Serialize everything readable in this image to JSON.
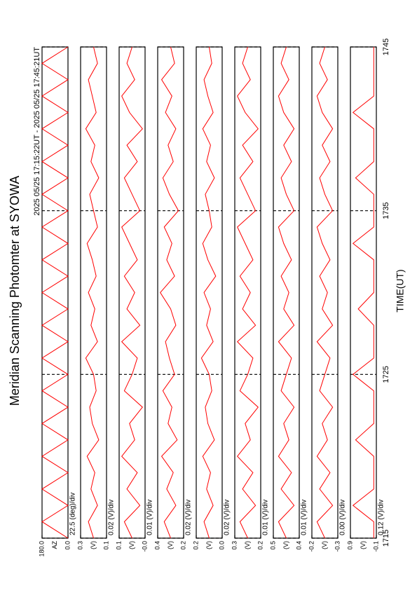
{
  "header": {
    "title": "Meridian Scanning Photomter at SYOWA",
    "subtitle": "2025 05/25 17:15:22UT - 2025 05/25 17:45:21UT"
  },
  "time_axis": {
    "label": "TIME(UT)",
    "xlim": [
      1715,
      1745
    ],
    "xticks": [
      1715,
      1725,
      1735,
      1745
    ],
    "x": [
      1715,
      1716,
      1717,
      1718,
      1719,
      1720,
      1721,
      1722,
      1723,
      1724,
      1725,
      1726,
      1727,
      1728,
      1729,
      1730,
      1731,
      1732,
      1733,
      1734,
      1735,
      1736,
      1737,
      1738,
      1739,
      1740,
      1741,
      1742,
      1743,
      1744,
      1745
    ]
  },
  "chart_data": [
    {
      "type": "line",
      "label": "AZ",
      "scale": "22.5 (deg)/div",
      "color": "#ff0000",
      "ylim": [
        0,
        180
      ],
      "yticks": [
        {
          "value": 0,
          "label": "0.0"
        },
        {
          "value": 180,
          "label": "180.0"
        }
      ],
      "values": [
        0,
        180,
        0,
        180,
        0,
        180,
        0,
        180,
        0,
        180,
        0,
        180,
        0,
        180,
        0,
        180,
        0,
        180,
        0,
        180,
        0,
        180,
        0,
        180,
        0,
        180,
        0,
        180,
        0,
        180,
        0
      ]
    },
    {
      "type": "line",
      "label": "(V)",
      "scale": "0.02 (V)/div",
      "color": "#ff0000",
      "ylim": [
        0.1,
        0.3
      ],
      "yticks": [
        0.1,
        0.3
      ],
      "values": [
        0.2,
        0.24,
        0.17,
        0.22,
        0.19,
        0.25,
        0.16,
        0.21,
        0.23,
        0.18,
        0.2,
        0.26,
        0.17,
        0.22,
        0.19,
        0.24,
        0.18,
        0.21,
        0.25,
        0.17,
        0.2,
        0.23,
        0.16,
        0.22,
        0.19,
        0.26,
        0.18,
        0.21,
        0.24,
        0.17,
        0.2
      ]
    },
    {
      "type": "line",
      "label": "(V)",
      "scale": "0.01 (V)/div",
      "color": "#ff0000",
      "ylim": [
        0,
        0.1
      ],
      "yticks": [
        {
          "value": 0,
          "label": "-0.0"
        },
        0.1
      ],
      "values": [
        0.05,
        0.08,
        0.02,
        0.07,
        0.03,
        0.09,
        0.04,
        0.06,
        0.01,
        0.08,
        0.05,
        0.03,
        0.09,
        0.02,
        0.07,
        0.04,
        0.08,
        0.03,
        0.06,
        0.09,
        0.02,
        0.05,
        0.08,
        0.03,
        0.07,
        0.01,
        0.06,
        0.09,
        0.04,
        0.07,
        0.05
      ]
    },
    {
      "type": "line",
      "label": "(V)",
      "scale": "0.02 (V)/div",
      "color": "#ff0000",
      "ylim": [
        0.2,
        0.4
      ],
      "yticks": [
        0.2,
        0.4
      ],
      "values": [
        0.3,
        0.35,
        0.26,
        0.33,
        0.28,
        0.37,
        0.25,
        0.32,
        0.29,
        0.36,
        0.27,
        0.31,
        0.34,
        0.26,
        0.3,
        0.38,
        0.27,
        0.33,
        0.29,
        0.35,
        0.24,
        0.31,
        0.36,
        0.28,
        0.32,
        0.26,
        0.34,
        0.29,
        0.37,
        0.27,
        0.3
      ]
    },
    {
      "type": "line",
      "label": "(V)",
      "scale": "0.02 (V)/div",
      "color": "#ff0000",
      "ylim": [
        0,
        0.2
      ],
      "yticks": [
        {
          "value": 0,
          "label": "0.0"
        },
        0.2
      ],
      "values": [
        0.1,
        0.14,
        0.07,
        0.12,
        0.09,
        0.15,
        0.06,
        0.11,
        0.13,
        0.08,
        0.1,
        0.16,
        0.07,
        0.12,
        0.09,
        0.14,
        0.05,
        0.11,
        0.15,
        0.08,
        0.1,
        0.13,
        0.06,
        0.12,
        0.09,
        0.15,
        0.07,
        0.11,
        0.14,
        0.08,
        0.1
      ]
    },
    {
      "type": "line",
      "label": "(V)",
      "scale": "0.01 (V)/div",
      "color": "#ff0000",
      "ylim": [
        0.2,
        0.3
      ],
      "yticks": [
        0.2,
        0.3
      ],
      "values": [
        0.25,
        0.28,
        0.22,
        0.27,
        0.23,
        0.29,
        0.24,
        0.26,
        0.21,
        0.28,
        0.25,
        0.23,
        0.29,
        0.22,
        0.27,
        0.24,
        0.28,
        0.23,
        0.26,
        0.29,
        0.22,
        0.25,
        0.28,
        0.23,
        0.27,
        0.21,
        0.26,
        0.29,
        0.24,
        0.27,
        0.25
      ]
    },
    {
      "type": "line",
      "label": "(V)",
      "scale": "0.01 (V)/div",
      "color": "#ff0000",
      "ylim": [
        0.4,
        0.5
      ],
      "yticks": [
        0.4,
        0.5
      ],
      "values": [
        0.45,
        0.48,
        0.42,
        0.47,
        0.43,
        0.48,
        0.44,
        0.46,
        0.42,
        0.47,
        0.45,
        0.43,
        0.48,
        0.42,
        0.46,
        0.44,
        0.47,
        0.43,
        0.46,
        0.48,
        0.42,
        0.45,
        0.47,
        0.43,
        0.46,
        0.42,
        0.46,
        0.48,
        0.44,
        0.47,
        0.45
      ]
    },
    {
      "type": "line",
      "label": "(V)",
      "scale": "0.00 (V)/div",
      "color": "#ff0000",
      "ylim": [
        -0.3,
        -0.2
      ],
      "yticks": [
        -0.3,
        -0.2
      ],
      "values": [
        -0.25,
        -0.22,
        -0.28,
        -0.23,
        -0.27,
        -0.22,
        -0.26,
        -0.24,
        -0.28,
        -0.23,
        -0.25,
        -0.27,
        -0.22,
        -0.28,
        -0.24,
        -0.26,
        -0.23,
        -0.27,
        -0.24,
        -0.22,
        -0.28,
        -0.25,
        -0.23,
        -0.27,
        -0.24,
        -0.28,
        -0.24,
        -0.22,
        -0.26,
        -0.23,
        -0.25
      ]
    },
    {
      "type": "line",
      "label": "(V)",
      "scale": "0.12 (V)/div",
      "color": "#ff0000",
      "ylim": [
        -0.1,
        0.9
      ],
      "yticks": [
        -0.1,
        0.9
      ],
      "values": [
        0,
        0,
        0.8,
        0,
        0,
        0,
        0.7,
        0,
        0,
        0,
        0.8,
        0,
        0,
        0,
        0.6,
        0,
        0,
        0,
        0.8,
        0,
        0,
        0,
        0.7,
        0,
        0,
        0,
        0.8,
        0,
        0,
        0,
        0
      ]
    }
  ]
}
